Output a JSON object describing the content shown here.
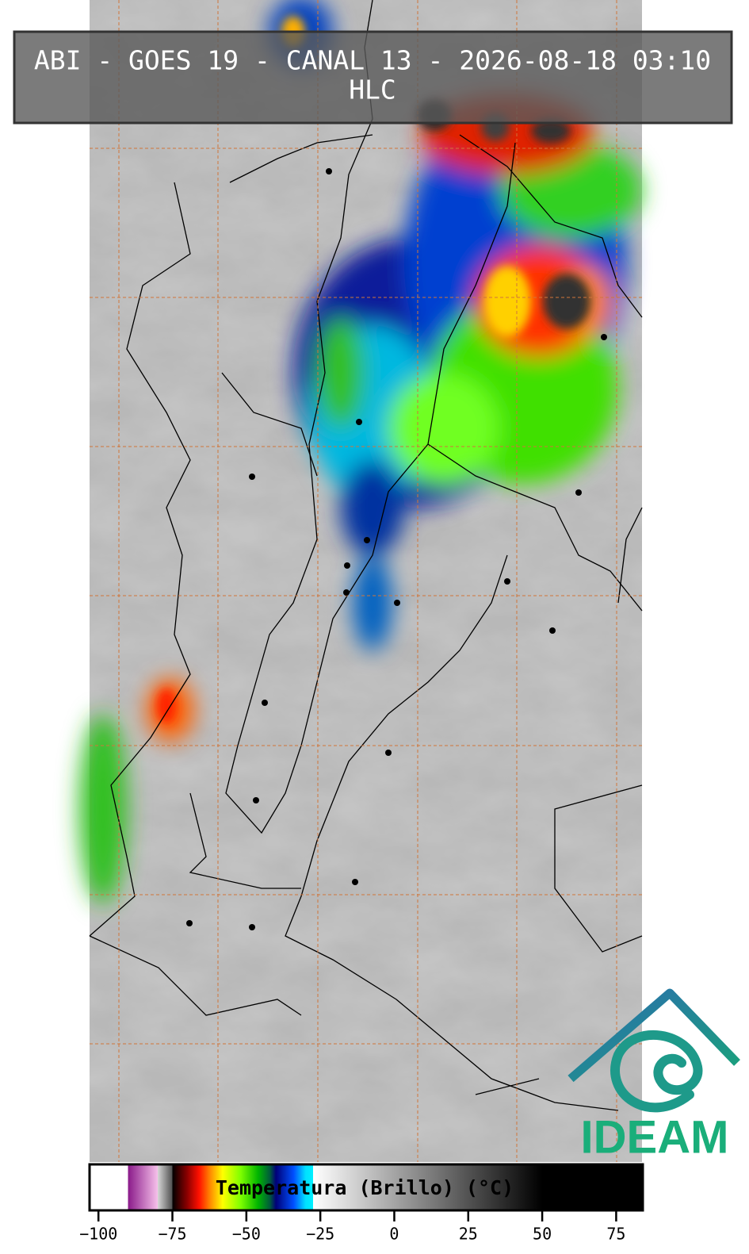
{
  "header": {
    "title": "ABI - GOES 19 - CANAL 13 - 2026-08-18 03:10",
    "subtitle": "HLC"
  },
  "colorbar": {
    "label": "Temperatura (Brillo) (°C)",
    "lim": [
      -103,
      84
    ],
    "ticks": [
      {
        "value": -100,
        "label": "−100"
      },
      {
        "value": -75,
        "label": "−75"
      },
      {
        "value": -50,
        "label": "−50"
      },
      {
        "value": -25,
        "label": "−25"
      },
      0,
      25,
      50,
      75
    ],
    "colormap": [
      {
        "value": -103,
        "color": "#ffffff"
      },
      {
        "value": -90,
        "color": "#ffffff"
      },
      {
        "value": -90,
        "color": "#8a1a8a"
      },
      {
        "value": -80,
        "color": "#f6c0ea"
      },
      {
        "value": -80,
        "color": "#d8d8d8"
      },
      {
        "value": -75,
        "color": "#505050"
      },
      {
        "value": -75,
        "color": "#000000"
      },
      {
        "value": -70,
        "color": "#8b0000"
      },
      {
        "value": -66,
        "color": "#ff1000"
      },
      {
        "value": -62,
        "color": "#ff9000"
      },
      {
        "value": -58,
        "color": "#ffff00"
      },
      {
        "value": -52,
        "color": "#80ff00"
      },
      {
        "value": -46,
        "color": "#00b400"
      },
      {
        "value": -42,
        "color": "#005a3c"
      },
      {
        "value": -40,
        "color": "#000078"
      },
      {
        "value": -34,
        "color": "#0050ff"
      },
      {
        "value": -30,
        "color": "#00e0ff"
      },
      {
        "value": -27.5,
        "color": "#00f0ff"
      },
      {
        "value": -27.5,
        "color": "#ffffff"
      },
      {
        "value": 50,
        "color": "#000000"
      },
      {
        "value": 84,
        "color": "#000000"
      }
    ]
  },
  "logo": {
    "text": "IDEAM"
  }
}
